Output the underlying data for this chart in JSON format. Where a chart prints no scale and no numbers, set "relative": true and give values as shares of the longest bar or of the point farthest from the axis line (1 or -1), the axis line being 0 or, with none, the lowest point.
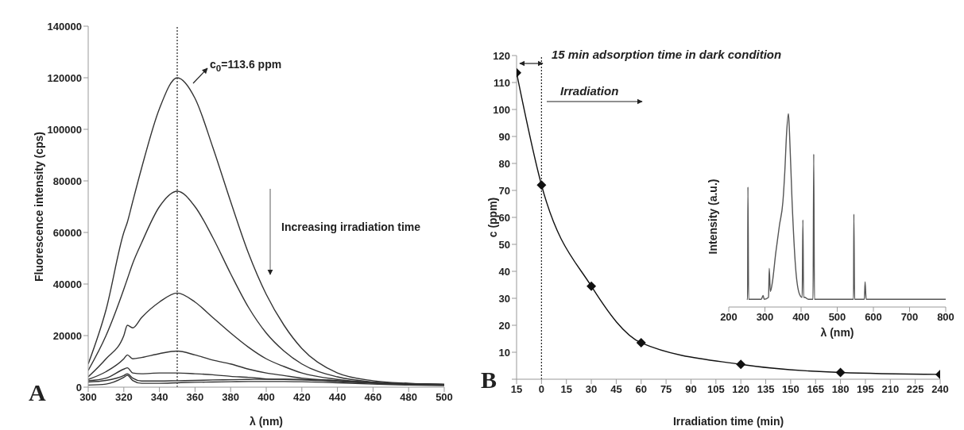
{
  "chart_data": [
    {
      "type": "line",
      "xlabel": "λ (nm)",
      "ylabel": "Fluorescence intensity (cps)",
      "xlim": [
        300,
        500
      ],
      "xticks": [
        300,
        320,
        340,
        360,
        380,
        400,
        420,
        440,
        460,
        480,
        500
      ],
      "ylim": [
        0,
        140000
      ],
      "yticks": [
        0,
        20000,
        40000,
        60000,
        80000,
        100000,
        120000,
        140000
      ],
      "marker": "none",
      "x": [
        300,
        310,
        320,
        322,
        325,
        330,
        340,
        350,
        360,
        370,
        380,
        390,
        400,
        410,
        420,
        440,
        460,
        480,
        500
      ],
      "series": [
        {
          "color": "#333333",
          "values": [
            9000,
            30000,
            60000,
            64000,
            72000,
            85000,
            108000,
            120000,
            112000,
            93000,
            72000,
            52000,
            36000,
            24000,
            15000,
            5500,
            2500,
            1500,
            1000
          ]
        },
        {
          "color": "#333333",
          "values": [
            6500,
            20000,
            38000,
            42000,
            48000,
            56000,
            70000,
            76000,
            70000,
            58000,
            44000,
            31000,
            21000,
            14000,
            9000,
            4000,
            2000,
            1300,
            1000
          ]
        },
        {
          "color": "#333333",
          "values": [
            4000,
            11000,
            20000,
            24000,
            23000,
            27000,
            33000,
            36500,
            33000,
            27000,
            21000,
            15500,
            11000,
            8000,
            5500,
            3000,
            1800,
            1200,
            1000
          ]
        },
        {
          "color": "#333333",
          "values": [
            3000,
            6000,
            11000,
            12500,
            11000,
            11500,
            13000,
            14000,
            12500,
            10500,
            9000,
            7000,
            5500,
            4500,
            3500,
            2500,
            1600,
            1200,
            1000
          ]
        },
        {
          "color": "#333333",
          "values": [
            2500,
            3500,
            7000,
            7500,
            5500,
            5200,
            5500,
            5500,
            5200,
            4800,
            4200,
            3800,
            3200,
            3000,
            2800,
            2200,
            1500,
            1200,
            1000
          ]
        },
        {
          "color": "#333333",
          "values": [
            2000,
            2600,
            4500,
            5200,
            3500,
            2400,
            2400,
            2500,
            2600,
            2800,
            2900,
            3000,
            3100,
            3100,
            3000,
            2500,
            1800,
            1400,
            1200
          ]
        },
        {
          "color": "#333333",
          "values": [
            800,
            1200,
            3800,
            4600,
            2600,
            1500,
            1500,
            1700,
            1900,
            2000,
            2100,
            2200,
            2200,
            2200,
            2100,
            1700,
            1200,
            800,
            600
          ]
        }
      ],
      "ref_lines": [
        {
          "axis": "x",
          "value": 350,
          "line_style": "dotted",
          "color": "#222222"
        }
      ],
      "annotations": [
        "A",
        "c$_{0}$=113.6 ppm",
        "Increasing irradiation time"
      ]
    },
    {
      "type": "line",
      "xlabel": "Irradiation time (min)",
      "ylabel": "c (ppm)",
      "xlim": [
        -15,
        240
      ],
      "xticks": [
        {
          "value": -15,
          "label": "15"
        },
        0,
        15,
        30,
        45,
        60,
        75,
        90,
        105,
        120,
        135,
        150,
        165,
        180,
        195,
        210,
        225,
        240
      ],
      "ylim": [
        0,
        120
      ],
      "yticks": [
        {
          "value": 0,
          "label": null
        },
        10,
        20,
        30,
        40,
        50,
        60,
        70,
        80,
        90,
        100,
        110,
        120
      ],
      "marker": "diamond",
      "x": [
        -15,
        0,
        30,
        60,
        120,
        180,
        240
      ],
      "series": [
        {
          "color": "#111111",
          "values": [
            113.6,
            72,
            34.5,
            13.5,
            5.5,
            2.5,
            1.8
          ]
        }
      ],
      "ref_lines": [
        {
          "axis": "x",
          "value": 0,
          "line_style": "dotted",
          "color": "#222222"
        }
      ],
      "annotations": [
        "B",
        "15 min adsorption time in dark condition",
        "Irradiation"
      ]
    },
    {
      "type": "line",
      "xlabel": "λ (nm)",
      "ylabel": "Intensity (a.u.)",
      "relative": true,
      "xlim": [
        200,
        800
      ],
      "xticks": [
        200,
        300,
        400,
        500,
        600,
        700,
        800
      ],
      "marker": "none",
      "x": [
        250,
        252,
        253,
        255,
        290,
        295,
        298,
        310,
        312,
        315,
        320,
        330,
        340,
        350,
        355,
        360,
        365,
        368,
        375,
        385,
        395,
        403,
        405,
        407,
        410,
        420,
        433,
        435,
        437,
        545,
        546,
        548,
        575,
        577,
        580,
        800
      ],
      "series": [
        {
          "color": "#555555",
          "values": [
            0.04,
            0.04,
            0.62,
            0.04,
            0.04,
            0.06,
            0.04,
            0.05,
            0.2,
            0.08,
            0.12,
            0.28,
            0.42,
            0.55,
            0.7,
            0.9,
            1,
            0.9,
            0.55,
            0.2,
            0.07,
            0.05,
            0.45,
            0.05,
            0.05,
            0.04,
            0.04,
            0.79,
            0.04,
            0.04,
            0.48,
            0.04,
            0.04,
            0.13,
            0.04,
            0.04
          ]
        }
      ]
    }
  ]
}
